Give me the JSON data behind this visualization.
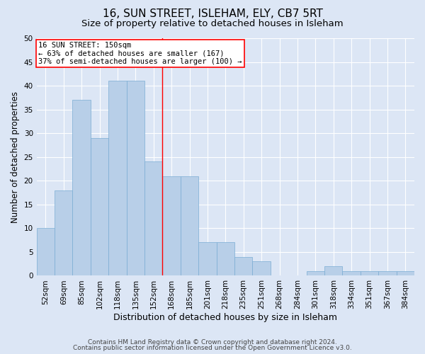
{
  "title1": "16, SUN STREET, ISLEHAM, ELY, CB7 5RT",
  "title2": "Size of property relative to detached houses in Isleham",
  "xlabel": "Distribution of detached houses by size in Isleham",
  "ylabel": "Number of detached properties",
  "categories": [
    "52sqm",
    "69sqm",
    "85sqm",
    "102sqm",
    "118sqm",
    "135sqm",
    "152sqm",
    "168sqm",
    "185sqm",
    "201sqm",
    "218sqm",
    "235sqm",
    "251sqm",
    "268sqm",
    "284sqm",
    "301sqm",
    "318sqm",
    "334sqm",
    "351sqm",
    "367sqm",
    "384sqm"
  ],
  "values": [
    10,
    18,
    37,
    29,
    41,
    41,
    24,
    21,
    21,
    7,
    7,
    4,
    3,
    0,
    0,
    1,
    2,
    1,
    1,
    1,
    1
  ],
  "bar_color": "#b8cfe8",
  "bar_edge_color": "#7aadd4",
  "highlight_line_index": 6,
  "annotation_text": "16 SUN STREET: 150sqm\n← 63% of detached houses are smaller (167)\n37% of semi-detached houses are larger (100) →",
  "annotation_box_color": "white",
  "annotation_box_edge_color": "red",
  "ylim": [
    0,
    50
  ],
  "yticks": [
    0,
    5,
    10,
    15,
    20,
    25,
    30,
    35,
    40,
    45,
    50
  ],
  "footer1": "Contains HM Land Registry data © Crown copyright and database right 2024.",
  "footer2": "Contains public sector information licensed under the Open Government Licence v3.0.",
  "background_color": "#dce6f5",
  "plot_bg_color": "#dce6f5",
  "grid_color": "white",
  "title1_fontsize": 11,
  "title2_fontsize": 9.5,
  "tick_fontsize": 7.5,
  "xlabel_fontsize": 9,
  "ylabel_fontsize": 8.5,
  "footer_fontsize": 6.5,
  "annotation_fontsize": 7.5
}
